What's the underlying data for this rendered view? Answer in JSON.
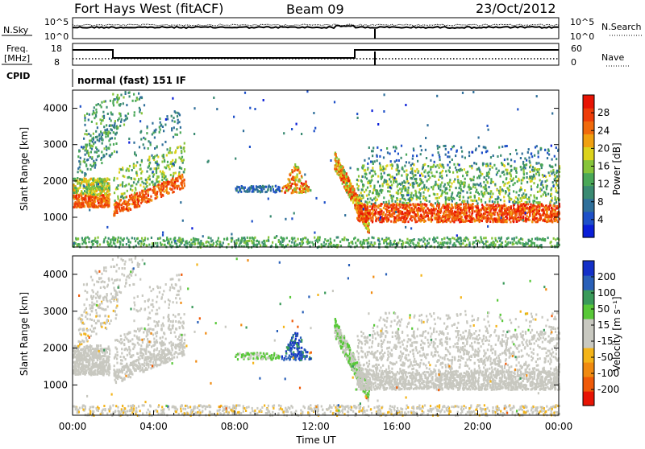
{
  "header": {
    "station": "Fort Hays West (fitACF)",
    "beam": "Beam 09",
    "date": "23/Oct/2012"
  },
  "top_panel": {
    "left_label": "N.Sky",
    "left_ticks": [
      "10^5",
      "10^0"
    ],
    "right_label": "N.Search",
    "right_ticks": [
      "10^5",
      "10^0"
    ]
  },
  "freq_panel": {
    "left_label_line1": "Freq.",
    "left_label_line2": "[MHz]",
    "left_ticks": [
      "18",
      "8"
    ],
    "right_label": "Nave",
    "right_ticks": [
      "60",
      "0"
    ]
  },
  "cpid": {
    "label": "CPID",
    "mode": "normal (fast) 151 IF"
  },
  "colors": {
    "power": [
      "#0a1ed8",
      "#1e50c8",
      "#2f6f9a",
      "#3a8a72",
      "#4aa858",
      "#86c43a",
      "#dcd21c",
      "#f0a010",
      "#f06a0c",
      "#ee3c08",
      "#e81404"
    ],
    "velocity": [
      "#e81404",
      "#ef5a08",
      "#f08a10",
      "#f4b418",
      "#c8c8c0",
      "#c8c8c0",
      "#58c838",
      "#3a9a5a",
      "#2a60b8",
      "#1430c8"
    ]
  },
  "chart_data": [
    {
      "type": "heatmap",
      "title": "",
      "ylabel": "Slant Range [km]",
      "xlabel": "",
      "ylim": [
        180,
        4500
      ],
      "xlim": [
        "00:00",
        "24:00"
      ],
      "y_ticks": [
        1000,
        2000,
        3000,
        4000
      ],
      "colorbar": {
        "label": "Power [dB]",
        "ticks": [
          "28",
          "24",
          "20",
          "16",
          "12",
          "8",
          "4"
        ],
        "range": [
          0,
          32
        ]
      }
    },
    {
      "type": "heatmap",
      "title": "",
      "ylabel": "Slant Range [km]",
      "xlabel": "Time UT",
      "ylim": [
        180,
        4500
      ],
      "xlim": [
        "00:00",
        "24:00"
      ],
      "y_ticks": [
        1000,
        2000,
        3000,
        4000
      ],
      "x_tick_labels": [
        "00:00",
        "04:00",
        "08:00",
        "12:00",
        "16:00",
        "20:00",
        "00:00"
      ],
      "colorbar": {
        "label": "Velocity [m s⁻¹]",
        "ticks": [
          "200",
          "100",
          "50",
          "15",
          "-15",
          "-50",
          "-100",
          "-200"
        ],
        "range": [
          -250,
          250
        ]
      }
    }
  ]
}
